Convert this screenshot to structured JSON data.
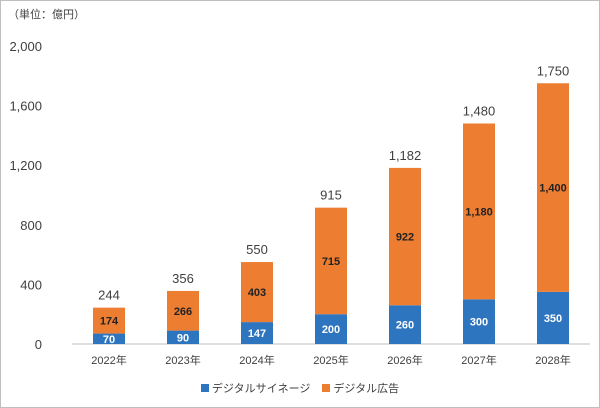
{
  "unit_note": "（単位：億円）",
  "colors": {
    "signage": "#2e75c0",
    "ads": "#ed7d31",
    "axis": "#bfbfbf",
    "text": "#404040"
  },
  "chart_data": {
    "type": "bar",
    "stacked": true,
    "categories": [
      "2022年",
      "2023年",
      "2024年",
      "2025年",
      "2026年",
      "2027年",
      "2028年"
    ],
    "series": [
      {
        "name": "デジタルサイネージ",
        "values": [
          70,
          90,
          147,
          200,
          260,
          300,
          350
        ]
      },
      {
        "name": "デジタル広告",
        "values": [
          174,
          266,
          403,
          715,
          922,
          1180,
          1400
        ]
      }
    ],
    "totals": [
      "244",
      "356",
      "550",
      "915",
      "1,182",
      "1,480",
      "1,750"
    ],
    "value_labels": [
      [
        "70",
        "90",
        "147",
        "200",
        "260",
        "300",
        "350"
      ],
      [
        "174",
        "266",
        "403",
        "715",
        "922",
        "1,180",
        "1,400"
      ]
    ],
    "yticks": [
      "0",
      "400",
      "800",
      "1,200",
      "1,600",
      "2,000"
    ],
    "ylim": [
      0,
      2000
    ],
    "grid": false,
    "legend_position": "bottom"
  },
  "legend": [
    {
      "label": "デジタルサイネージ"
    },
    {
      "label": "デジタル広告"
    }
  ]
}
